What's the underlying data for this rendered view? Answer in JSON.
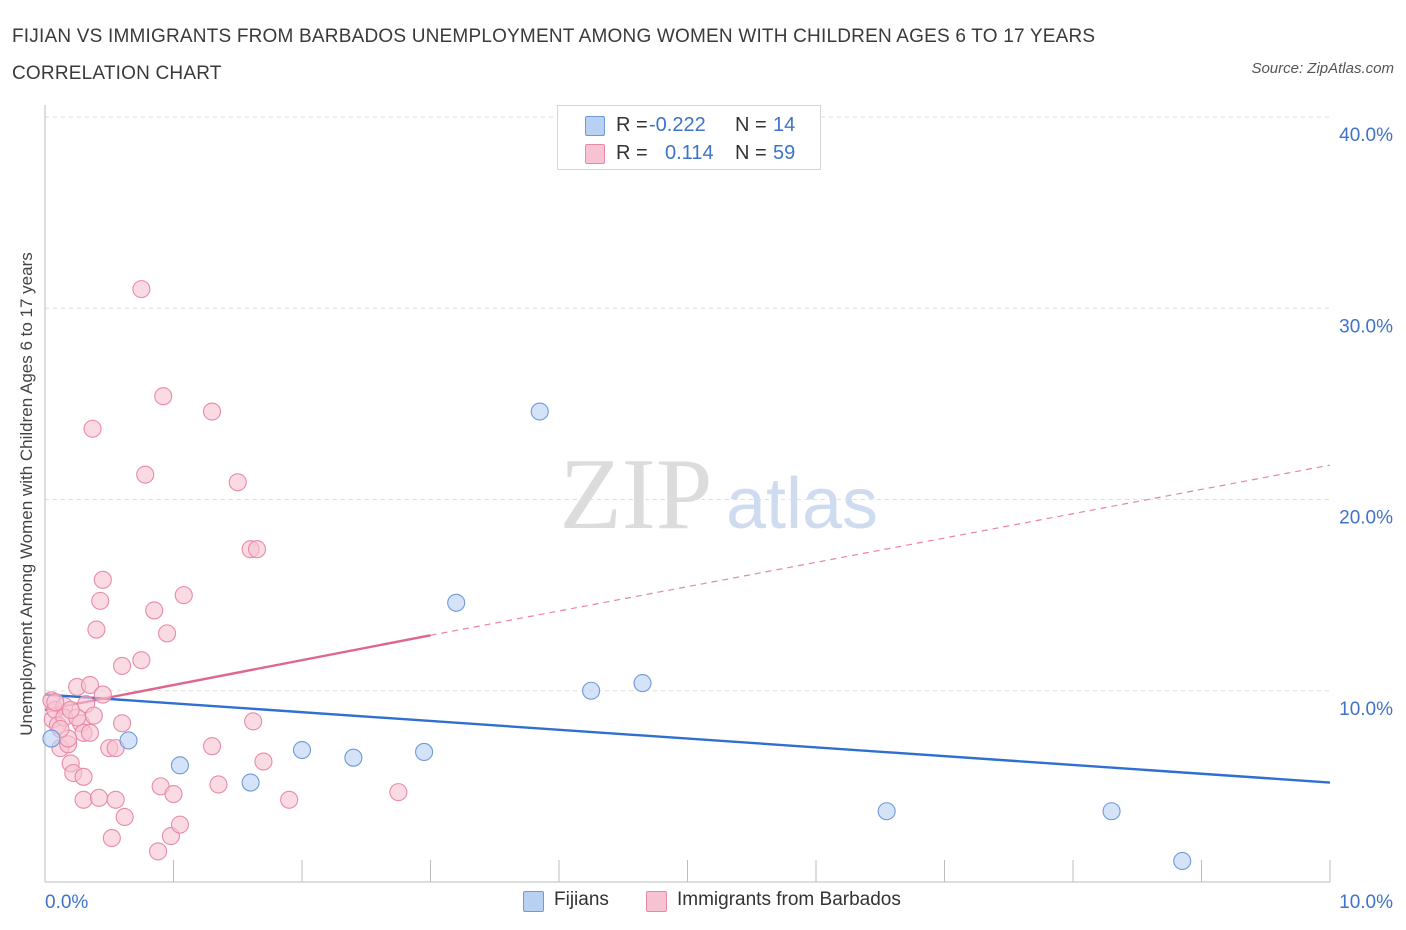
{
  "title": "FIJIAN VS IMMIGRANTS FROM BARBADOS UNEMPLOYMENT AMONG WOMEN WITH CHILDREN AGES 6 TO 17 YEARS CORRELATION CHART",
  "source": "Source: ZipAtlas.com",
  "watermark": {
    "zip": "ZIP",
    "atlas": "atlas"
  },
  "colors": {
    "fijians_fill": "#b8d1f3",
    "fijians_stroke": "#6f9ad8",
    "fijians_line": "#2f6fcf",
    "barbados_fill": "#f7c3d2",
    "barbados_stroke": "#e88aa6",
    "barbados_line": "#e0668e",
    "axis_text": "#3f73c8",
    "grid": "#dedede"
  },
  "legend": {
    "rows": [
      {
        "r_label": "R =",
        "r_value": "-0.222",
        "n_label": "N =",
        "n_value": "14"
      },
      {
        "r_label": "R =",
        "r_value": "0.114",
        "n_label": "N =",
        "n_value": "59"
      }
    ]
  },
  "bottom_legend": [
    "Fijians",
    "Immigrants from Barbados"
  ],
  "chart_data": {
    "type": "scatter",
    "title": "FIJIAN VS IMMIGRANTS FROM BARBADOS UNEMPLOYMENT AMONG WOMEN WITH CHILDREN AGES 6 TO 17 YEARS CORRELATION CHART",
    "xlabel": "",
    "ylabel": "Unemployment Among Women with Children Ages 6 to 17 years",
    "xlim": [
      0,
      10
    ],
    "ylim": [
      0,
      40
    ],
    "x_tick_labels": [
      "0.0%",
      "10.0%"
    ],
    "y_tick_labels": [
      "10.0%",
      "20.0%",
      "30.0%",
      "40.0%"
    ],
    "y_ticks": [
      10,
      20,
      30,
      40
    ],
    "grid": true,
    "legend_position": "top-center",
    "series": [
      {
        "name": "Fijians",
        "r": -0.222,
        "n": 14,
        "points": [
          [
            0.05,
            7.5
          ],
          [
            0.65,
            7.4
          ],
          [
            1.05,
            6.1
          ],
          [
            1.6,
            5.2
          ],
          [
            2.0,
            6.9
          ],
          [
            2.4,
            6.5
          ],
          [
            2.95,
            6.8
          ],
          [
            3.2,
            14.6
          ],
          [
            3.85,
            24.6
          ],
          [
            4.25,
            10.0
          ],
          [
            4.65,
            10.4
          ],
          [
            6.55,
            3.7
          ],
          [
            8.3,
            3.7
          ],
          [
            8.85,
            1.1
          ]
        ],
        "trend": {
          "x": [
            0,
            10
          ],
          "y": [
            9.8,
            5.2
          ],
          "style": "solid"
        }
      },
      {
        "name": "Immigrants from Barbados",
        "r": 0.114,
        "n": 59,
        "points": [
          [
            0.05,
            9.5
          ],
          [
            0.06,
            8.5
          ],
          [
            0.08,
            9.0
          ],
          [
            0.1,
            8.2
          ],
          [
            0.12,
            7.0
          ],
          [
            0.15,
            9.2
          ],
          [
            0.18,
            7.2
          ],
          [
            0.2,
            6.2
          ],
          [
            0.22,
            5.7
          ],
          [
            0.25,
            10.2
          ],
          [
            0.28,
            8.3
          ],
          [
            0.3,
            7.8
          ],
          [
            0.32,
            9.3
          ],
          [
            0.3,
            5.5
          ],
          [
            0.3,
            4.3
          ],
          [
            0.35,
            7.8
          ],
          [
            0.38,
            8.7
          ],
          [
            0.35,
            10.3
          ],
          [
            0.37,
            23.7
          ],
          [
            0.4,
            13.2
          ],
          [
            0.42,
            4.4
          ],
          [
            0.43,
            14.7
          ],
          [
            0.45,
            15.8
          ],
          [
            0.5,
            7.0
          ],
          [
            0.55,
            7.0
          ],
          [
            0.52,
            2.3
          ],
          [
            0.55,
            4.3
          ],
          [
            0.6,
            11.3
          ],
          [
            0.6,
            8.3
          ],
          [
            0.62,
            3.4
          ],
          [
            0.75,
            11.6
          ],
          [
            0.75,
            31.0
          ],
          [
            0.78,
            21.3
          ],
          [
            0.85,
            14.2
          ],
          [
            0.88,
            1.6
          ],
          [
            0.9,
            5.0
          ],
          [
            0.92,
            25.4
          ],
          [
            0.95,
            13.0
          ],
          [
            0.98,
            2.4
          ],
          [
            1.0,
            4.6
          ],
          [
            1.05,
            3.0
          ],
          [
            1.08,
            15.0
          ],
          [
            1.3,
            24.6
          ],
          [
            1.3,
            7.1
          ],
          [
            1.35,
            5.1
          ],
          [
            1.5,
            20.9
          ],
          [
            1.6,
            17.4
          ],
          [
            1.62,
            8.4
          ],
          [
            1.65,
            17.4
          ],
          [
            1.7,
            6.3
          ],
          [
            1.9,
            4.3
          ],
          [
            2.75,
            4.7
          ],
          [
            0.15,
            8.6
          ],
          [
            0.25,
            8.6
          ],
          [
            0.2,
            9.0
          ],
          [
            0.45,
            9.8
          ],
          [
            0.08,
            9.4
          ],
          [
            0.18,
            7.5
          ],
          [
            0.12,
            8.0
          ]
        ],
        "trend": {
          "x": [
            0,
            3.0
          ],
          "y": [
            9.0,
            12.9
          ],
          "style": "solid",
          "extension": {
            "x": [
              3.0,
              10
            ],
            "y": [
              12.9,
              21.8
            ],
            "style": "dashed"
          }
        }
      }
    ]
  }
}
